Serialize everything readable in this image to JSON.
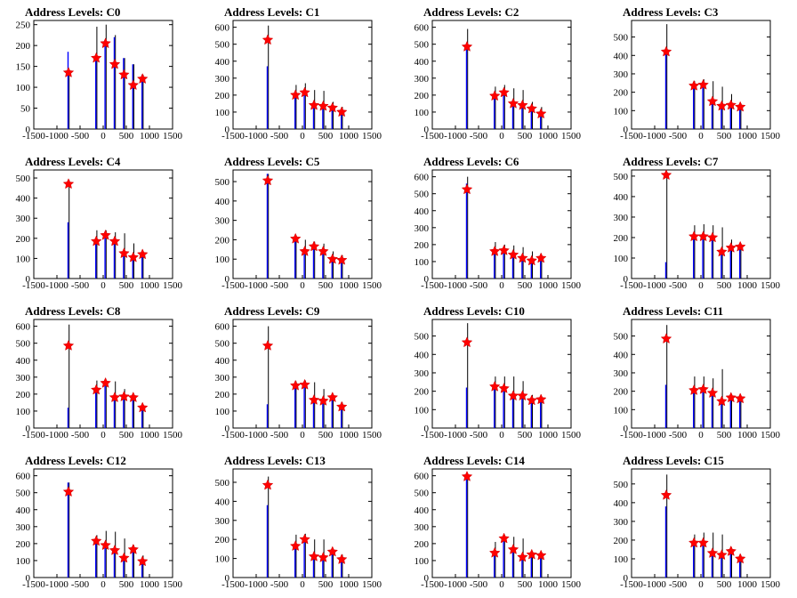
{
  "chart_data": [
    {
      "type": "bar",
      "title": "Address Levels: C0",
      "xlim": [
        -1500,
        1500
      ],
      "ylim": [
        0,
        260
      ],
      "yticks": [
        0,
        50,
        100,
        150,
        200,
        250
      ],
      "xticks": [
        -1500,
        -1000,
        -500,
        0,
        500,
        1000,
        1500
      ],
      "xticklabels": [
        "-1500",
        "-1000",
        "-500",
        "0",
        "500",
        "1000",
        "1500"
      ],
      "peaks_x": [
        -750,
        -150,
        50,
        250,
        450,
        650,
        850
      ],
      "blue_peaks": [
        185,
        170,
        200,
        220,
        170,
        155,
        130
      ],
      "black_peaks": [
        130,
        245,
        250,
        225,
        170,
        155,
        130
      ],
      "markers": [
        135,
        170,
        205,
        155,
        130,
        105,
        120
      ]
    },
    {
      "type": "bar",
      "title": "Address Levels: C1",
      "xlim": [
        -1500,
        1500
      ],
      "ylim": [
        0,
        640
      ],
      "yticks": [
        0,
        100,
        200,
        300,
        400,
        500,
        600
      ],
      "xticks": [
        -1500,
        -1000,
        -500,
        0,
        500,
        1000,
        1500
      ],
      "xticklabels": [
        "-1500",
        "-1000",
        "-500",
        "0",
        "500",
        "1000",
        "1500"
      ],
      "peaks_x": [
        -750,
        -150,
        50,
        250,
        450,
        650,
        850
      ],
      "blue_peaks": [
        370,
        200,
        215,
        140,
        135,
        125,
        100
      ],
      "black_peaks": [
        610,
        260,
        270,
        230,
        225,
        160,
        130
      ],
      "markers": [
        525,
        200,
        215,
        140,
        135,
        125,
        100
      ]
    },
    {
      "type": "bar",
      "title": "Address Levels: C2",
      "xlim": [
        -1500,
        1500
      ],
      "ylim": [
        0,
        640
      ],
      "yticks": [
        0,
        100,
        200,
        300,
        400,
        500,
        600
      ],
      "xticks": [
        -1500,
        -1000,
        -500,
        0,
        500,
        1000,
        1500
      ],
      "xticklabels": [
        "-1500",
        "-1000",
        "-500",
        "0",
        "500",
        "1000",
        "1500"
      ],
      "peaks_x": [
        -750,
        -150,
        50,
        250,
        450,
        650,
        850
      ],
      "blue_peaks": [
        470,
        195,
        215,
        150,
        140,
        125,
        90
      ],
      "black_peaks": [
        590,
        250,
        260,
        240,
        230,
        160,
        130
      ],
      "markers": [
        485,
        195,
        215,
        150,
        140,
        120,
        90
      ]
    },
    {
      "type": "bar",
      "title": "Address Levels: C3",
      "xlim": [
        -1500,
        1500
      ],
      "ylim": [
        0,
        590
      ],
      "yticks": [
        0,
        100,
        200,
        300,
        400,
        500
      ],
      "xticks": [
        -1500,
        -1000,
        -500,
        0,
        500,
        1000,
        1500
      ],
      "xticklabels": [
        "-1500",
        "-1000",
        "-500",
        "0",
        "500",
        "1000",
        "1500"
      ],
      "peaks_x": [
        -750,
        -150,
        50,
        250,
        450,
        650,
        850
      ],
      "blue_peaks": [
        430,
        230,
        235,
        145,
        120,
        130,
        120
      ],
      "black_peaks": [
        570,
        260,
        270,
        260,
        230,
        190,
        140
      ],
      "markers": [
        420,
        235,
        240,
        150,
        125,
        130,
        120
      ]
    },
    {
      "type": "bar",
      "title": "Address Levels: C4",
      "xlim": [
        -1500,
        1500
      ],
      "ylim": [
        0,
        540
      ],
      "yticks": [
        0,
        100,
        200,
        300,
        400,
        500
      ],
      "xticks": [
        -1500,
        -1000,
        -500,
        0,
        500,
        1000,
        1500
      ],
      "xticklabels": [
        "-1500",
        "-1000",
        "-500",
        "0",
        "500",
        "1000",
        "1500"
      ],
      "peaks_x": [
        -750,
        -150,
        50,
        250,
        450,
        650,
        850
      ],
      "blue_peaks": [
        280,
        185,
        215,
        185,
        125,
        105,
        120
      ],
      "black_peaks": [
        490,
        240,
        240,
        230,
        225,
        175,
        130
      ],
      "markers": [
        470,
        185,
        215,
        185,
        125,
        105,
        120
      ]
    },
    {
      "type": "bar",
      "title": "Address Levels: C5",
      "xlim": [
        -1500,
        1500
      ],
      "ylim": [
        0,
        560
      ],
      "yticks": [
        0,
        100,
        200,
        300,
        400,
        500
      ],
      "xticks": [
        -1500,
        -1000,
        -500,
        0,
        500,
        1000,
        1500
      ],
      "xticklabels": [
        "-1500",
        "-1000",
        "-500",
        "0",
        "500",
        "1000",
        "1500"
      ],
      "peaks_x": [
        -750,
        -150,
        50,
        250,
        450,
        650,
        850
      ],
      "blue_peaks": [
        540,
        200,
        135,
        160,
        135,
        95,
        95
      ],
      "black_peaks": [
        540,
        220,
        200,
        190,
        180,
        140,
        120
      ],
      "markers": [
        505,
        205,
        140,
        165,
        140,
        100,
        95
      ]
    },
    {
      "type": "bar",
      "title": "Address Levels: C6",
      "xlim": [
        -1500,
        1500
      ],
      "ylim": [
        0,
        640
      ],
      "yticks": [
        0,
        100,
        200,
        300,
        400,
        500,
        600
      ],
      "xticks": [
        -1500,
        -1000,
        -500,
        0,
        500,
        1000,
        1500
      ],
      "xticklabels": [
        "-1500",
        "-1000",
        "-500",
        "0",
        "500",
        "1000",
        "1500"
      ],
      "peaks_x": [
        -750,
        -150,
        50,
        250,
        450,
        650,
        850
      ],
      "blue_peaks": [
        560,
        160,
        165,
        140,
        120,
        105,
        120
      ],
      "black_peaks": [
        600,
        215,
        200,
        195,
        185,
        160,
        120
      ],
      "markers": [
        525,
        160,
        165,
        140,
        120,
        105,
        120
      ]
    },
    {
      "type": "bar",
      "title": "Address Levels: C7",
      "xlim": [
        -1500,
        1500
      ],
      "ylim": [
        0,
        530
      ],
      "yticks": [
        0,
        100,
        200,
        300,
        400,
        500
      ],
      "xticks": [
        -1500,
        -1000,
        -500,
        0,
        500,
        1000,
        1500
      ],
      "xticklabels": [
        "-1500",
        "-1000",
        "-500",
        "0",
        "500",
        "1000",
        "1500"
      ],
      "peaks_x": [
        -750,
        -150,
        50,
        250,
        450,
        650,
        850
      ],
      "blue_peaks": [
        80,
        205,
        200,
        200,
        130,
        145,
        160
      ],
      "black_peaks": [
        520,
        260,
        265,
        260,
        250,
        190,
        160
      ],
      "markers": [
        505,
        205,
        205,
        200,
        130,
        150,
        155
      ]
    },
    {
      "type": "bar",
      "title": "Address Levels: C8",
      "xlim": [
        -1500,
        1500
      ],
      "ylim": [
        0,
        640
      ],
      "yticks": [
        0,
        100,
        200,
        300,
        400,
        500,
        600
      ],
      "xticks": [
        -1500,
        -1000,
        -500,
        0,
        500,
        1000,
        1500
      ],
      "xticklabels": [
        "-1500",
        "-1000",
        "-500",
        "0",
        "500",
        "1000",
        "1500"
      ],
      "peaks_x": [
        -750,
        -150,
        50,
        250,
        450,
        650,
        850
      ],
      "blue_peaks": [
        120,
        225,
        265,
        180,
        185,
        180,
        120
      ],
      "black_peaks": [
        610,
        280,
        280,
        275,
        230,
        185,
        130
      ],
      "markers": [
        485,
        225,
        265,
        180,
        185,
        180,
        120
      ]
    },
    {
      "type": "bar",
      "title": "Address Levels: C9",
      "xlim": [
        -1500,
        1500
      ],
      "ylim": [
        0,
        640
      ],
      "yticks": [
        0,
        100,
        200,
        300,
        400,
        500,
        600
      ],
      "xticks": [
        -1500,
        -1000,
        -500,
        0,
        500,
        1000,
        1500
      ],
      "xticklabels": [
        "-1500",
        "-1000",
        "-500",
        "0",
        "500",
        "1000",
        "1500"
      ],
      "peaks_x": [
        -750,
        -150,
        50,
        250,
        450,
        650,
        850
      ],
      "blue_peaks": [
        140,
        250,
        255,
        165,
        160,
        180,
        125
      ],
      "black_peaks": [
        600,
        275,
        280,
        270,
        230,
        200,
        150
      ],
      "markers": [
        485,
        250,
        255,
        165,
        160,
        180,
        125
      ]
    },
    {
      "type": "bar",
      "title": "Address Levels: C10",
      "xlim": [
        -1500,
        1500
      ],
      "ylim": [
        0,
        590
      ],
      "yticks": [
        0,
        100,
        200,
        300,
        400,
        500
      ],
      "xticks": [
        -1500,
        -1000,
        -500,
        0,
        500,
        1000,
        1500
      ],
      "xticklabels": [
        "-1500",
        "-1000",
        "-500",
        "0",
        "500",
        "1000",
        "1500"
      ],
      "peaks_x": [
        -750,
        -150,
        50,
        250,
        450,
        650,
        850
      ],
      "blue_peaks": [
        220,
        225,
        215,
        175,
        175,
        150,
        155
      ],
      "black_peaks": [
        570,
        280,
        280,
        280,
        255,
        180,
        160
      ],
      "markers": [
        465,
        225,
        215,
        175,
        175,
        150,
        155
      ]
    },
    {
      "type": "bar",
      "title": "Address Levels: C11",
      "xlim": [
        -1500,
        1500
      ],
      "ylim": [
        0,
        590
      ],
      "yticks": [
        0,
        100,
        200,
        300,
        400,
        500
      ],
      "xticks": [
        -1500,
        -1000,
        -500,
        0,
        500,
        1000,
        1500
      ],
      "xticklabels": [
        "-1500",
        "-1000",
        "-500",
        "0",
        "500",
        "1000",
        "1500"
      ],
      "peaks_x": [
        -750,
        -150,
        50,
        250,
        450,
        650,
        850
      ],
      "blue_peaks": [
        235,
        205,
        205,
        190,
        145,
        165,
        160
      ],
      "black_peaks": [
        560,
        280,
        280,
        270,
        320,
        180,
        160
      ],
      "markers": [
        485,
        205,
        210,
        190,
        145,
        165,
        160
      ]
    },
    {
      "type": "bar",
      "title": "Address Levels: C12",
      "xlim": [
        -1500,
        1500
      ],
      "ylim": [
        0,
        640
      ],
      "yticks": [
        0,
        100,
        200,
        300,
        400,
        500,
        600
      ],
      "xticks": [
        -1500,
        -1000,
        -500,
        0,
        500,
        1000,
        1500
      ],
      "xticklabels": [
        "-1500",
        "-1000",
        "-500",
        "0",
        "500",
        "1000",
        "1500"
      ],
      "peaks_x": [
        -750,
        -150,
        50,
        250,
        450,
        650,
        850
      ],
      "blue_peaks": [
        560,
        215,
        185,
        160,
        115,
        165,
        95
      ],
      "black_peaks": [
        560,
        250,
        275,
        270,
        230,
        190,
        130
      ],
      "markers": [
        505,
        215,
        190,
        160,
        115,
        165,
        95
      ]
    },
    {
      "type": "bar",
      "title": "Address Levels: C13",
      "xlim": [
        -1500,
        1500
      ],
      "ylim": [
        0,
        570
      ],
      "yticks": [
        0,
        100,
        200,
        300,
        400,
        500
      ],
      "xticks": [
        -1500,
        -1000,
        -500,
        0,
        500,
        1000,
        1500
      ],
      "xticklabels": [
        "-1500",
        "-1000",
        "-500",
        "0",
        "500",
        "1000",
        "1500"
      ],
      "peaks_x": [
        -750,
        -150,
        50,
        250,
        450,
        650,
        850
      ],
      "blue_peaks": [
        380,
        165,
        200,
        110,
        100,
        135,
        95
      ],
      "black_peaks": [
        530,
        225,
        230,
        200,
        200,
        150,
        120
      ],
      "markers": [
        485,
        165,
        200,
        110,
        105,
        135,
        95
      ]
    },
    {
      "type": "bar",
      "title": "Address Levels: C14",
      "xlim": [
        -1500,
        1500
      ],
      "ylim": [
        0,
        640
      ],
      "yticks": [
        0,
        100,
        200,
        300,
        400,
        500,
        600
      ],
      "xticks": [
        -1500,
        -1000,
        -500,
        0,
        500,
        1000,
        1500
      ],
      "xticklabels": [
        "-1500",
        "-1000",
        "-500",
        "0",
        "500",
        "1000",
        "1500"
      ],
      "peaks_x": [
        -750,
        -150,
        50,
        250,
        450,
        650,
        850
      ],
      "blue_peaks": [
        600,
        145,
        230,
        165,
        120,
        135,
        130
      ],
      "black_peaks": [
        610,
        210,
        250,
        240,
        230,
        150,
        140
      ],
      "markers": [
        595,
        145,
        230,
        165,
        120,
        135,
        130
      ]
    },
    {
      "type": "bar",
      "title": "Address Levels: C15",
      "xlim": [
        -1500,
        1500
      ],
      "ylim": [
        0,
        580
      ],
      "yticks": [
        0,
        100,
        200,
        300,
        400,
        500
      ],
      "xticks": [
        -1500,
        -1000,
        -500,
        0,
        500,
        1000,
        1500
      ],
      "xticklabels": [
        "-1500",
        "-1000",
        "-500",
        "0",
        "500",
        "1000",
        "1500"
      ],
      "peaks_x": [
        -750,
        -150,
        50,
        250,
        450,
        650,
        850
      ],
      "blue_peaks": [
        380,
        185,
        185,
        130,
        120,
        135,
        100
      ],
      "black_peaks": [
        550,
        230,
        240,
        240,
        230,
        160,
        120
      ],
      "markers": [
        440,
        185,
        185,
        130,
        120,
        140,
        100
      ]
    }
  ],
  "colors": {
    "blue_series": "#0000ff",
    "black_series": "#000000",
    "marker": "#ff0000",
    "marker_outline": "#cc0000",
    "axes": "#000000"
  }
}
